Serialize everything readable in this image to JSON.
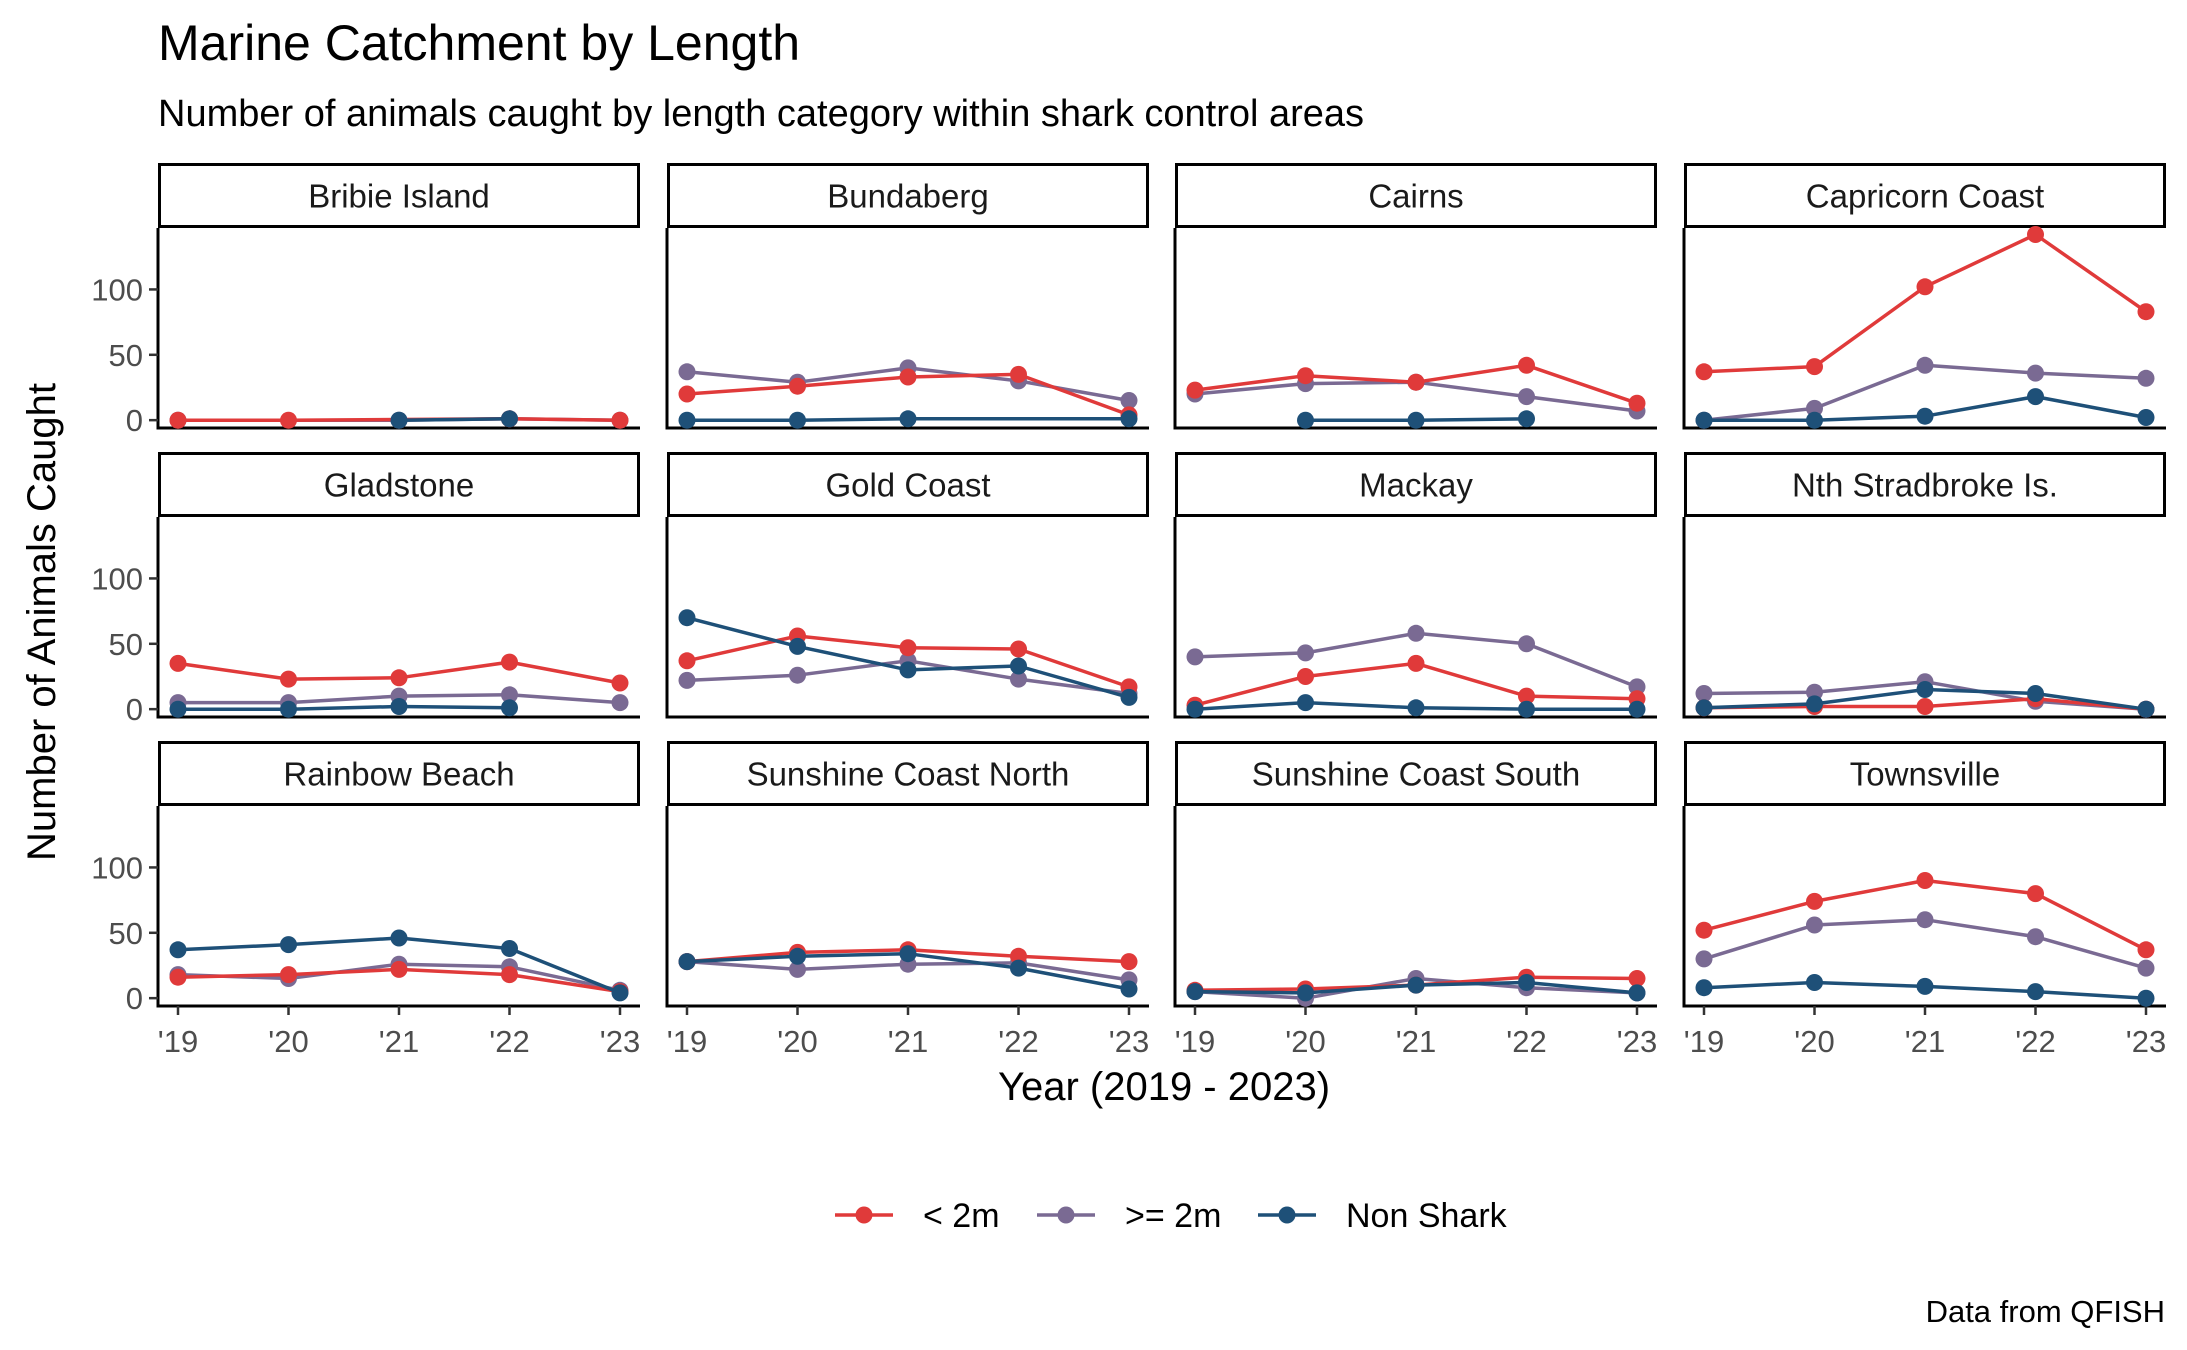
{
  "chart_data": {
    "type": "line",
    "title": "Marine Catchment by Length",
    "subtitle": "Number of animals caught by length category within shark control areas",
    "xlabel": "Year (2019 - 2023)",
    "ylabel": "Number of Animals Caught",
    "caption": "Data from QFISH",
    "x_tick_labels": [
      "'19",
      "'20",
      "'21",
      "'22",
      "'23"
    ],
    "y_ticks": [
      0,
      50,
      100
    ],
    "ylim": [
      -6,
      147
    ],
    "legend_position": "bottom",
    "grid": false,
    "colors": {
      "lt2m": "#E03A3A",
      "ge2m": "#7A6A93",
      "nonshark": "#1E5078"
    },
    "legend": [
      {
        "key": "lt2m",
        "label": "< 2m"
      },
      {
        "key": "ge2m",
        "label": ">= 2m"
      },
      {
        "key": "nonshark",
        "label": "Non Shark"
      }
    ],
    "facets": [
      {
        "name": "Bribie Island",
        "series": {
          "lt2m": [
            0,
            0,
            null,
            1,
            0
          ],
          "ge2m": [
            0,
            null,
            0,
            1,
            0
          ],
          "nonshark": [
            null,
            null,
            0,
            1,
            null
          ]
        }
      },
      {
        "name": "Bundaberg",
        "series": {
          "lt2m": [
            20,
            26,
            33,
            35,
            4
          ],
          "ge2m": [
            37,
            29,
            40,
            30,
            15
          ],
          "nonshark": [
            0,
            0,
            1,
            null,
            1
          ]
        }
      },
      {
        "name": "Cairns",
        "series": {
          "lt2m": [
            23,
            34,
            29,
            42,
            13
          ],
          "ge2m": [
            20,
            28,
            29,
            18,
            7
          ],
          "nonshark": [
            null,
            0,
            0,
            1,
            null
          ]
        }
      },
      {
        "name": "Capricorn Coast",
        "series": {
          "lt2m": [
            37,
            41,
            102,
            142,
            83
          ],
          "ge2m": [
            0,
            9,
            42,
            36,
            32
          ],
          "nonshark": [
            0,
            0,
            3,
            18,
            2
          ]
        }
      },
      {
        "name": "Gladstone",
        "series": {
          "lt2m": [
            35,
            23,
            24,
            36,
            20
          ],
          "ge2m": [
            5,
            5,
            10,
            11,
            5
          ],
          "nonshark": [
            0,
            0,
            2,
            1,
            null
          ]
        }
      },
      {
        "name": "Gold Coast",
        "series": {
          "lt2m": [
            37,
            56,
            47,
            46,
            17
          ],
          "ge2m": [
            22,
            26,
            37,
            23,
            12
          ],
          "nonshark": [
            70,
            48,
            30,
            33,
            9
          ]
        }
      },
      {
        "name": "Mackay",
        "series": {
          "lt2m": [
            3,
            25,
            35,
            10,
            8
          ],
          "ge2m": [
            40,
            43,
            58,
            50,
            17
          ],
          "nonshark": [
            0,
            5,
            1,
            0,
            0
          ]
        }
      },
      {
        "name": "Nth Stradbroke Is.",
        "series": {
          "lt2m": [
            1,
            2,
            2,
            8,
            0
          ],
          "ge2m": [
            12,
            13,
            21,
            6,
            0
          ],
          "nonshark": [
            1,
            4,
            15,
            12,
            0
          ]
        }
      },
      {
        "name": "Rainbow Beach",
        "series": {
          "lt2m": [
            16,
            18,
            22,
            18,
            5
          ],
          "ge2m": [
            18,
            15,
            26,
            24,
            6
          ],
          "nonshark": [
            37,
            41,
            46,
            38,
            4
          ]
        }
      },
      {
        "name": "Sunshine Coast North",
        "series": {
          "lt2m": [
            28,
            35,
            37,
            32,
            28
          ],
          "ge2m": [
            28,
            22,
            26,
            27,
            14
          ],
          "nonshark": [
            28,
            32,
            34,
            23,
            7
          ]
        }
      },
      {
        "name": "Sunshine Coast South",
        "series": {
          "lt2m": [
            6,
            7,
            10,
            16,
            15
          ],
          "ge2m": [
            5,
            0,
            15,
            8,
            4
          ],
          "nonshark": [
            5,
            4,
            10,
            12,
            4
          ]
        }
      },
      {
        "name": "Townsville",
        "series": {
          "lt2m": [
            52,
            74,
            90,
            80,
            37
          ],
          "ge2m": [
            30,
            56,
            60,
            47,
            23
          ],
          "nonshark": [
            8,
            12,
            9,
            5,
            0
          ]
        }
      }
    ]
  }
}
